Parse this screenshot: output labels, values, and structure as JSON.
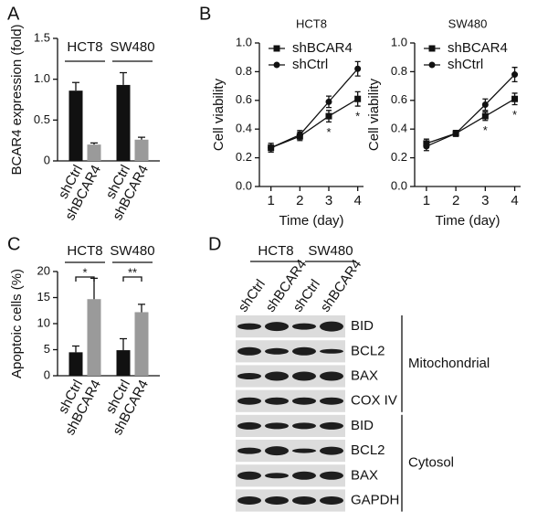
{
  "chart_data": [
    {
      "type": "bar",
      "panel_label": "A",
      "ylabel": "BCAR4 expression (fold)",
      "groups": [
        "HCT8",
        "SW480"
      ],
      "categories": [
        "shCtrl",
        "shBCAR4",
        "shCtrl",
        "shBCAR4"
      ],
      "values": [
        0.86,
        0.2,
        0.93,
        0.26
      ],
      "errors": [
        0.1,
        0.02,
        0.15,
        0.03
      ],
      "colors": [
        "#111111",
        "#9a9a9a",
        "#111111",
        "#9a9a9a"
      ],
      "ylim": [
        0,
        1.5
      ],
      "yticks": [
        0,
        0.5,
        {
          "value": 1,
          "label": "1.0"
        },
        1.5
      ]
    },
    {
      "type": "line",
      "panel_label": "B",
      "title": "HCT8",
      "xlabel": "Time (day)",
      "ylabel": "Cell viability",
      "x": [
        1,
        2,
        3,
        4
      ],
      "xlim": [
        0.6,
        4.2
      ],
      "xticks": [
        1,
        2,
        3,
        4
      ],
      "ylim": [
        0,
        1
      ],
      "yticks": [
        {
          "value": 0,
          "label": "0.0"
        },
        0.2,
        0.4,
        0.6,
        0.8,
        {
          "value": 1,
          "label": "1.0"
        }
      ],
      "legend": "upper left",
      "series": [
        {
          "name": "shBCAR4",
          "marker": "square",
          "color": "#111111",
          "values": [
            0.27,
            0.35,
            0.49,
            0.61
          ],
          "errors": [
            0.03,
            0.03,
            0.04,
            0.05
          ]
        },
        {
          "name": "shCtrl",
          "marker": "circle",
          "color": "#111111",
          "values": [
            0.27,
            0.36,
            0.59,
            0.82
          ],
          "errors": [
            0.03,
            0.03,
            0.04,
            0.05
          ]
        }
      ],
      "annotations": [
        "*",
        "*"
      ]
    },
    {
      "type": "line",
      "title": "SW480",
      "xlabel": "Time (day)",
      "ylabel": "Cell viability",
      "x": [
        1,
        2,
        3,
        4
      ],
      "xlim": [
        0.6,
        4.2
      ],
      "xticks": [
        1,
        2,
        3,
        4
      ],
      "ylim": [
        0,
        1
      ],
      "yticks": [
        {
          "value": 0,
          "label": "0.0"
        },
        0.2,
        0.4,
        0.6,
        0.8,
        {
          "value": 1,
          "label": "1.0"
        }
      ],
      "legend": "upper left",
      "series": [
        {
          "name": "shBCAR4",
          "marker": "square",
          "color": "#111111",
          "values": [
            0.3,
            0.37,
            0.49,
            0.61
          ],
          "errors": [
            0.03,
            0.02,
            0.03,
            0.04
          ]
        },
        {
          "name": "shCtrl",
          "marker": "circle",
          "color": "#111111",
          "values": [
            0.28,
            0.37,
            0.57,
            0.78
          ],
          "errors": [
            0.03,
            0.02,
            0.04,
            0.05
          ]
        }
      ],
      "annotations": [
        "*",
        "*"
      ]
    },
    {
      "type": "bar",
      "panel_label": "C",
      "ylabel": "Apoptoic cells (%)",
      "groups": [
        "HCT8",
        "SW480"
      ],
      "categories": [
        "shCtrl",
        "shBCAR4",
        "shCtrl",
        "shBCAR4"
      ],
      "values": [
        4.5,
        14.7,
        4.9,
        12.2
      ],
      "errors": [
        1.2,
        4,
        2.2,
        1.5
      ],
      "colors": [
        "#111111",
        "#9a9a9a",
        "#111111",
        "#9a9a9a"
      ],
      "ylim": [
        0,
        20
      ],
      "yticks": [
        0,
        5,
        10,
        15,
        20
      ],
      "annotations": [
        "*",
        "**"
      ]
    }
  ],
  "blot": {
    "panel_label": "D",
    "groups": [
      "HCT8",
      "SW480"
    ],
    "lanes": [
      "shCtrl",
      "shBCAR4",
      "shCtrl",
      "shBCAR4"
    ],
    "rows": [
      "BID",
      "BCL2",
      "BAX",
      "COX IV",
      "BID",
      "BCL2",
      "BAX",
      "GAPDH"
    ],
    "fractions": [
      "Mitochondrial",
      "Cytosol"
    ]
  }
}
